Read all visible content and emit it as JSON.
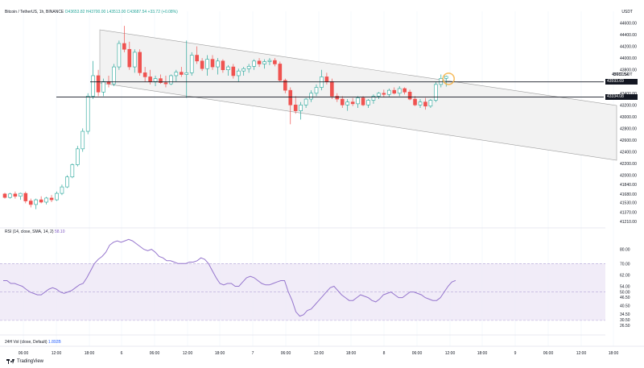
{
  "header": {
    "symbol": "Bitcoin / TetherUS, 1h, BINANCE",
    "ohlc": "O43653.82 H43700.00 L43513.00 C43687.54 +33.72 (+0.08%)"
  },
  "currency_label": "USDT",
  "price_axis": {
    "ticks": [
      "44600.00",
      "44400.00",
      "44200.00",
      "44000.00",
      "43800.00",
      "43600.00",
      "43400.00",
      "43200.00",
      "43000.00",
      "42800.00",
      "42600.00",
      "42400.00",
      "42200.00",
      "42000.00",
      "41840.00",
      "41680.00",
      "41530.00",
      "41370.00",
      "41210.00"
    ]
  },
  "price_labels": {
    "last_price": "43687.54",
    "symbol_tag": "BTCUSDT",
    "level_upper_tag": "43593.69",
    "level_lower_tag": "43334.08"
  },
  "rsi": {
    "label": "RSI (14, close, SMA, 14, 2)",
    "value": "58.10",
    "ticks": [
      "80.00",
      "70.00",
      "62.00",
      "54.00",
      "50.00",
      "46.50",
      "40.50",
      "34.50",
      "30.50",
      "26.50"
    ]
  },
  "volume": {
    "label": "24H Vol (close, Default)",
    "value": "1.892B"
  },
  "time_axis": {
    "labels": [
      "06:00",
      "12:00",
      "18:00",
      "6",
      "06:00",
      "12:00",
      "18:00",
      "7",
      "06:00",
      "12:00",
      "18:00",
      "8",
      "06:00",
      "12:00",
      "18:00",
      "9",
      "06:00",
      "12:00",
      "18:00"
    ]
  },
  "branding": "TradingView",
  "colors": {
    "up": "#26a69a",
    "down": "#ef5350",
    "rsi_line": "#9575cd",
    "rsi_band": "#ede7f6",
    "channel": "#f2f2f2",
    "level_tag": "#131722",
    "highlight": "#f5b041"
  },
  "chart_data": {
    "type": "candlestick",
    "title": "Bitcoin / TetherUS, 1h, BINANCE",
    "y_range": [
      41100,
      44800
    ],
    "horizontal_levels": [
      43593.69,
      43334.08
    ],
    "candles": [
      {
        "o": 41680,
        "h": 41700,
        "l": 41600,
        "c": 41620
      },
      {
        "o": 41620,
        "h": 41700,
        "l": 41600,
        "c": 41680
      },
      {
        "o": 41680,
        "h": 41720,
        "l": 41600,
        "c": 41640
      },
      {
        "o": 41640,
        "h": 41700,
        "l": 41580,
        "c": 41690
      },
      {
        "o": 41690,
        "h": 41720,
        "l": 41520,
        "c": 41560
      },
      {
        "o": 41560,
        "h": 41600,
        "l": 41450,
        "c": 41500
      },
      {
        "o": 41500,
        "h": 41600,
        "l": 41420,
        "c": 41580
      },
      {
        "o": 41580,
        "h": 41640,
        "l": 41520,
        "c": 41540
      },
      {
        "o": 41540,
        "h": 41630,
        "l": 41500,
        "c": 41610
      },
      {
        "o": 41610,
        "h": 41660,
        "l": 41540,
        "c": 41580
      },
      {
        "o": 41580,
        "h": 41720,
        "l": 41560,
        "c": 41690
      },
      {
        "o": 41690,
        "h": 41840,
        "l": 41660,
        "c": 41800
      },
      {
        "o": 41800,
        "h": 42000,
        "l": 41780,
        "c": 41970
      },
      {
        "o": 41970,
        "h": 42200,
        "l": 41950,
        "c": 42180
      },
      {
        "o": 42180,
        "h": 42500,
        "l": 42150,
        "c": 42450
      },
      {
        "o": 42450,
        "h": 42800,
        "l": 42400,
        "c": 42750
      },
      {
        "o": 42750,
        "h": 43400,
        "l": 42700,
        "c": 43350
      },
      {
        "o": 43350,
        "h": 43950,
        "l": 43300,
        "c": 43700
      },
      {
        "o": 43700,
        "h": 43800,
        "l": 43350,
        "c": 43420
      },
      {
        "o": 43420,
        "h": 43650,
        "l": 43350,
        "c": 43600
      },
      {
        "o": 43600,
        "h": 43700,
        "l": 43500,
        "c": 43560
      },
      {
        "o": 43560,
        "h": 43900,
        "l": 43520,
        "c": 43850
      },
      {
        "o": 43850,
        "h": 44300,
        "l": 43800,
        "c": 44250
      },
      {
        "o": 44250,
        "h": 44550,
        "l": 44100,
        "c": 44150
      },
      {
        "o": 44150,
        "h": 44280,
        "l": 43800,
        "c": 43850
      },
      {
        "o": 43850,
        "h": 44150,
        "l": 43750,
        "c": 44100
      },
      {
        "o": 44100,
        "h": 44150,
        "l": 43700,
        "c": 43750
      },
      {
        "o": 43750,
        "h": 43850,
        "l": 43600,
        "c": 43680
      },
      {
        "o": 43680,
        "h": 43800,
        "l": 43550,
        "c": 43600
      },
      {
        "o": 43600,
        "h": 43700,
        "l": 43520,
        "c": 43650
      },
      {
        "o": 43650,
        "h": 43720,
        "l": 43560,
        "c": 43580
      },
      {
        "o": 43580,
        "h": 43700,
        "l": 43500,
        "c": 43560
      },
      {
        "o": 43560,
        "h": 43720,
        "l": 43540,
        "c": 43700
      },
      {
        "o": 43700,
        "h": 43800,
        "l": 43600,
        "c": 43760
      },
      {
        "o": 43760,
        "h": 43850,
        "l": 43680,
        "c": 43720
      },
      {
        "o": 43720,
        "h": 44300,
        "l": 43320,
        "c": 43750
      },
      {
        "o": 43750,
        "h": 44100,
        "l": 43700,
        "c": 44050
      },
      {
        "o": 44050,
        "h": 44200,
        "l": 43900,
        "c": 43950
      },
      {
        "o": 43950,
        "h": 44000,
        "l": 43780,
        "c": 43820
      },
      {
        "o": 43820,
        "h": 44050,
        "l": 43700,
        "c": 43980
      },
      {
        "o": 43980,
        "h": 44050,
        "l": 43800,
        "c": 43850
      },
      {
        "o": 43850,
        "h": 44000,
        "l": 43720,
        "c": 43950
      },
      {
        "o": 43950,
        "h": 43980,
        "l": 43750,
        "c": 43800
      },
      {
        "o": 43800,
        "h": 43880,
        "l": 43700,
        "c": 43850
      },
      {
        "o": 43850,
        "h": 43900,
        "l": 43650,
        "c": 43700
      },
      {
        "o": 43700,
        "h": 43820,
        "l": 43600,
        "c": 43780
      },
      {
        "o": 43780,
        "h": 43850,
        "l": 43700,
        "c": 43820
      },
      {
        "o": 43820,
        "h": 43900,
        "l": 43750,
        "c": 43860
      },
      {
        "o": 43860,
        "h": 43980,
        "l": 43800,
        "c": 43950
      },
      {
        "o": 43950,
        "h": 44000,
        "l": 43850,
        "c": 43900
      },
      {
        "o": 43900,
        "h": 43980,
        "l": 43820,
        "c": 43940
      },
      {
        "o": 43940,
        "h": 44000,
        "l": 43880,
        "c": 43960
      },
      {
        "o": 43960,
        "h": 44000,
        "l": 43860,
        "c": 43900
      },
      {
        "o": 43900,
        "h": 43940,
        "l": 43600,
        "c": 43620
      },
      {
        "o": 43620,
        "h": 43650,
        "l": 43400,
        "c": 43450
      },
      {
        "o": 43450,
        "h": 43500,
        "l": 42870,
        "c": 43200
      },
      {
        "o": 43200,
        "h": 43350,
        "l": 43050,
        "c": 43100
      },
      {
        "o": 43100,
        "h": 43250,
        "l": 42950,
        "c": 43200
      },
      {
        "o": 43200,
        "h": 43320,
        "l": 43150,
        "c": 43300
      },
      {
        "o": 43300,
        "h": 43450,
        "l": 43250,
        "c": 43400
      },
      {
        "o": 43400,
        "h": 43550,
        "l": 43350,
        "c": 43500
      },
      {
        "o": 43500,
        "h": 43800,
        "l": 43450,
        "c": 43680
      },
      {
        "o": 43680,
        "h": 43750,
        "l": 43550,
        "c": 43600
      },
      {
        "o": 43600,
        "h": 43650,
        "l": 43300,
        "c": 43350
      },
      {
        "o": 43350,
        "h": 43400,
        "l": 43250,
        "c": 43300
      },
      {
        "o": 43300,
        "h": 43350,
        "l": 43150,
        "c": 43200
      },
      {
        "o": 43200,
        "h": 43300,
        "l": 43100,
        "c": 43250
      },
      {
        "o": 43250,
        "h": 43320,
        "l": 43180,
        "c": 43220
      },
      {
        "o": 43220,
        "h": 43350,
        "l": 43150,
        "c": 43320
      },
      {
        "o": 43320,
        "h": 43350,
        "l": 43180,
        "c": 43200
      },
      {
        "o": 43200,
        "h": 43300,
        "l": 43150,
        "c": 43280
      },
      {
        "o": 43280,
        "h": 43380,
        "l": 43220,
        "c": 43350
      },
      {
        "o": 43350,
        "h": 43420,
        "l": 43300,
        "c": 43400
      },
      {
        "o": 43400,
        "h": 43460,
        "l": 43330,
        "c": 43380
      },
      {
        "o": 43380,
        "h": 43480,
        "l": 43340,
        "c": 43450
      },
      {
        "o": 43450,
        "h": 43500,
        "l": 43380,
        "c": 43400
      },
      {
        "o": 43400,
        "h": 43520,
        "l": 43350,
        "c": 43480
      },
      {
        "o": 43480,
        "h": 43500,
        "l": 43380,
        "c": 43420
      },
      {
        "o": 43420,
        "h": 43460,
        "l": 43280,
        "c": 43300
      },
      {
        "o": 43300,
        "h": 43350,
        "l": 43180,
        "c": 43200
      },
      {
        "o": 43200,
        "h": 43300,
        "l": 43150,
        "c": 43250
      },
      {
        "o": 43250,
        "h": 43320,
        "l": 43120,
        "c": 43180
      },
      {
        "o": 43180,
        "h": 43300,
        "l": 43150,
        "c": 43280
      },
      {
        "o": 43280,
        "h": 43600,
        "l": 43250,
        "c": 43550
      },
      {
        "o": 43550,
        "h": 43720,
        "l": 43500,
        "c": 43653.82
      },
      {
        "o": 43653.82,
        "h": 43700,
        "l": 43513,
        "c": 43687.54
      }
    ],
    "rsi_range": [
      22,
      90
    ],
    "rsi_upper": 70,
    "rsi_lower": 30,
    "rsi_mid": 50,
    "rsi_values": [
      58,
      58,
      56,
      56,
      55,
      54,
      52,
      50,
      49,
      48,
      48,
      50,
      52,
      53,
      52,
      50,
      49,
      50,
      51,
      53,
      55,
      56,
      60,
      65,
      70,
      73,
      75,
      78,
      83,
      85,
      86,
      85,
      86,
      87,
      86,
      84,
      82,
      80,
      79,
      80,
      78,
      75,
      74,
      72,
      72,
      71,
      70,
      70,
      70,
      71,
      71,
      72,
      74,
      73,
      70,
      65,
      60,
      56,
      55,
      56,
      56,
      54,
      54,
      57,
      60,
      61,
      60,
      58,
      56,
      55,
      55,
      56,
      57,
      58,
      58,
      50,
      44,
      36,
      33,
      34,
      37,
      38,
      41,
      44,
      47,
      50,
      53,
      54,
      51,
      48,
      46,
      44,
      44,
      46,
      48,
      47,
      46,
      44,
      43,
      45,
      48,
      49,
      50,
      48,
      46,
      46,
      48,
      50,
      50,
      49,
      48,
      46,
      45,
      44,
      44,
      46,
      50,
      54,
      57,
      58.1
    ]
  }
}
